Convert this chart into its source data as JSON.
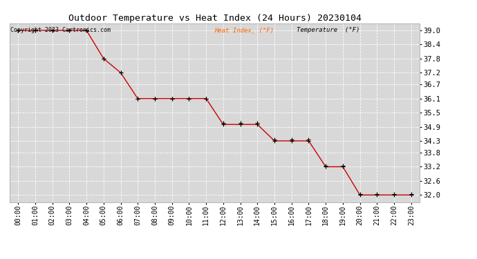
{
  "title": "Outdoor Temperature vs Heat Index (24 Hours) 20230104",
  "copyright_text": "Copyright 2023 Cartronics.com",
  "background_color": "#ffffff",
  "plot_bg_color": "#d8d8d8",
  "grid_color": "#ffffff",
  "hours": [
    0,
    1,
    2,
    3,
    4,
    5,
    6,
    7,
    8,
    9,
    10,
    11,
    12,
    13,
    14,
    15,
    16,
    17,
    18,
    19,
    20,
    21,
    22,
    23
  ],
  "heat_index": [
    39.0,
    39.0,
    39.0,
    39.0,
    39.0,
    37.8,
    37.2,
    36.1,
    36.1,
    36.1,
    36.1,
    36.1,
    35.0,
    35.0,
    35.0,
    34.3,
    34.3,
    34.3,
    33.2,
    33.2,
    32.0,
    32.0,
    32.0,
    32.0
  ],
  "temperature": [
    39.0,
    39.0,
    39.0,
    39.0,
    39.0,
    37.8,
    37.2,
    36.1,
    36.1,
    36.1,
    36.1,
    36.1,
    35.05,
    35.05,
    35.05,
    34.35,
    34.35,
    34.35,
    33.25,
    33.25,
    32.05,
    32.05,
    32.05,
    32.05
  ],
  "ylim_min": 31.7,
  "ylim_max": 39.3,
  "yticks": [
    32.0,
    32.6,
    33.2,
    33.8,
    34.3,
    34.9,
    35.5,
    36.1,
    36.7,
    37.2,
    37.8,
    38.4,
    39.0
  ],
  "heat_color": "#cc0000",
  "temp_marker_color": "#000000",
  "legend_heat_color": "#ff6600",
  "legend_temp_color": "#000000",
  "title_fontsize": 9.5,
  "tick_fontsize": 7,
  "ytick_fontsize": 7.5
}
